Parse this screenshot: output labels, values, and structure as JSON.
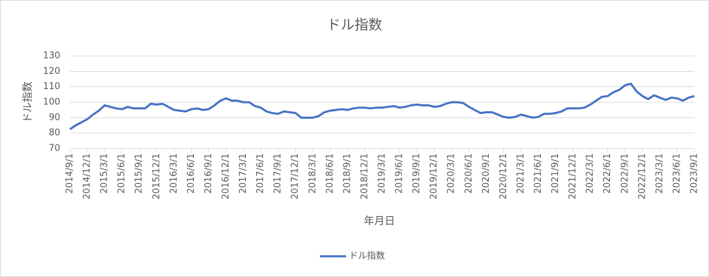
{
  "chart_data": {
    "type": "line",
    "title": "ドル指数",
    "x_label": "年月日",
    "y_label": "ドル指数",
    "categories": [
      "2014/9/1",
      null,
      null,
      "2014/12/1",
      null,
      null,
      "2015/3/1",
      null,
      null,
      "2015/6/1",
      null,
      null,
      "2015/9/1",
      null,
      null,
      "2015/12/1",
      null,
      null,
      "2016/3/1",
      null,
      null,
      "2016/6/1",
      null,
      null,
      "2016/9/1",
      null,
      null,
      "2016/12/1",
      null,
      null,
      "2017/3/1",
      null,
      null,
      "2017/6/1",
      null,
      null,
      "2017/9/1",
      null,
      null,
      "2017/12/1",
      null,
      null,
      "2018/3/1",
      null,
      null,
      "2018/6/1",
      null,
      null,
      "2018/9/1",
      null,
      null,
      "2018/12/1",
      null,
      null,
      "2019/3/1",
      null,
      null,
      "2019/6/1",
      null,
      null,
      "2019/9/1",
      null,
      null,
      "2019/12/1",
      null,
      null,
      "2020/3/1",
      null,
      null,
      "2020/6/1",
      null,
      null,
      "2020/9/1",
      null,
      null,
      "2020/12/1",
      null,
      null,
      "2021/3/1",
      null,
      null,
      "2021/6/1",
      null,
      null,
      "2021/9/1",
      null,
      null,
      "2021/12/1",
      null,
      null,
      "2022/3/1",
      null,
      null,
      "2022/6/1",
      null,
      null,
      "2022/9/1",
      null,
      null,
      "2022/12/1",
      null,
      null,
      "2023/3/1",
      null,
      null,
      "2023/6/1",
      null,
      null,
      "2023/9/1"
    ],
    "series": [
      {
        "name": "ドル指数",
        "color": "#4472c4",
        "values": [
          82.5,
          85,
          87,
          89,
          92,
          94.5,
          98,
          97,
          96,
          95.5,
          97,
          96,
          96,
          96,
          99,
          98.5,
          99,
          97,
          95,
          94.5,
          94,
          95.5,
          96,
          95,
          95.5,
          98,
          101,
          102.5,
          101,
          101,
          100,
          100,
          97.5,
          96.5,
          94,
          93,
          92.5,
          94,
          93.5,
          93,
          90,
          90,
          90,
          91,
          93.5,
          94.5,
          95,
          95.5,
          95,
          96,
          96.5,
          96.5,
          96,
          96.5,
          96.5,
          97,
          97.5,
          96.5,
          97,
          98,
          98.5,
          98,
          98,
          97,
          97.5,
          99,
          100,
          100,
          99.5,
          97,
          95,
          93,
          93.5,
          93.5,
          92,
          90.5,
          90,
          90.5,
          92,
          91,
          90,
          90.5,
          92.5,
          92.5,
          93,
          94,
          96,
          96,
          96,
          96.5,
          98.5,
          101,
          103.5,
          104,
          106.5,
          108,
          111,
          112,
          107,
          104,
          102,
          104.5,
          103,
          101.5,
          103,
          102.5,
          101,
          103,
          104
        ]
      }
    ],
    "ylim": [
      70,
      130
    ],
    "yticks": [
      70,
      80,
      90,
      100,
      110,
      120,
      130
    ],
    "grid": true,
    "legend": "bottom"
  }
}
